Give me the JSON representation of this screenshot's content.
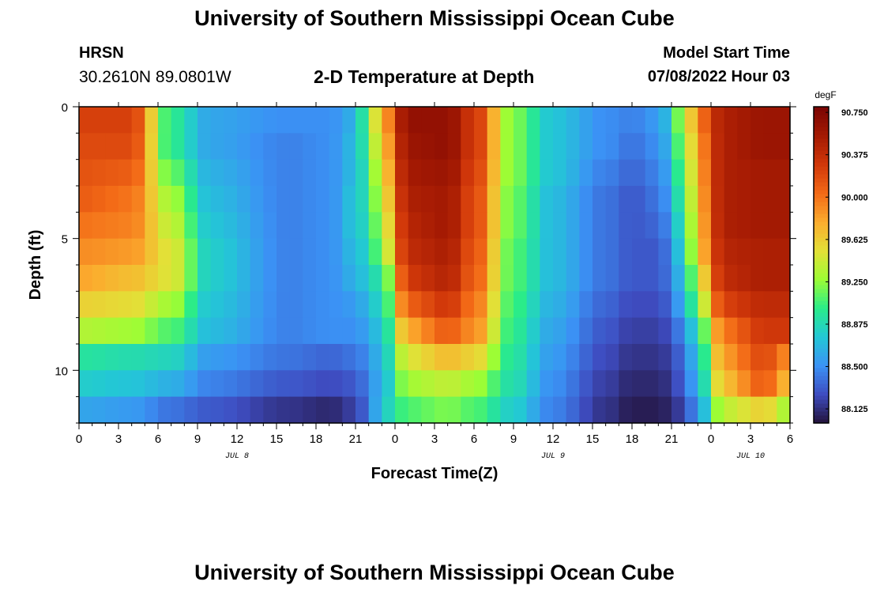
{
  "page": {
    "title": "University of Southern Mississippi Ocean Cube",
    "bottom_title": "University of Southern Mississippi Ocean Cube",
    "station": "HRSN",
    "coords": "30.2610N  89.0801W",
    "subtitle": "2-D Temperature at Depth",
    "model_start_label": "Model Start Time",
    "model_start_value": "07/08/2022 Hour 03"
  },
  "chart_data": {
    "type": "heatmap",
    "title": "2-D Temperature at Depth",
    "xlabel": "Forecast Time(Z)",
    "ylabel": "Depth (ft)",
    "x_hours": [
      0,
      54
    ],
    "y_range": [
      0,
      12
    ],
    "x_ticks": [
      {
        "h": 0,
        "label": "0"
      },
      {
        "h": 3,
        "label": "3"
      },
      {
        "h": 6,
        "label": "6"
      },
      {
        "h": 9,
        "label": "9"
      },
      {
        "h": 12,
        "label": "12"
      },
      {
        "h": 15,
        "label": "15"
      },
      {
        "h": 18,
        "label": "18"
      },
      {
        "h": 21,
        "label": "21"
      },
      {
        "h": 24,
        "label": "0"
      },
      {
        "h": 27,
        "label": "3"
      },
      {
        "h": 30,
        "label": "6"
      },
      {
        "h": 33,
        "label": "9"
      },
      {
        "h": 36,
        "label": "12"
      },
      {
        "h": 39,
        "label": "15"
      },
      {
        "h": 42,
        "label": "18"
      },
      {
        "h": 45,
        "label": "21"
      },
      {
        "h": 48,
        "label": "0"
      },
      {
        "h": 51,
        "label": "3"
      },
      {
        "h": 54,
        "label": "6"
      }
    ],
    "date_labels": [
      {
        "h": 12,
        "label": "JUL 8"
      },
      {
        "h": 36,
        "label": "JUL 9"
      },
      {
        "h": 51,
        "label": "JUL 10"
      }
    ],
    "y_ticks": [
      {
        "v": 0,
        "label": "0"
      },
      {
        "v": 5,
        "label": "5"
      },
      {
        "v": 10,
        "label": "10"
      }
    ],
    "depth_levels": [
      0.5,
      1.5,
      2.5,
      3.5,
      4.5,
      5.5,
      6.5,
      7.5,
      8.5,
      9.5,
      10.5,
      11.5
    ],
    "level_bounds": [
      0,
      1,
      2,
      3,
      4,
      5,
      6,
      7,
      8,
      9,
      10,
      11,
      12
    ],
    "time_step_hours": 1,
    "key_times": [
      0,
      4,
      7,
      10,
      16,
      19,
      21,
      22,
      23,
      25,
      28,
      30,
      33,
      36,
      40,
      42,
      44,
      46,
      47,
      49,
      52,
      54
    ],
    "values": [
      [
        90.25,
        90.25,
        89.0,
        88.6,
        88.5,
        88.5,
        88.65,
        89.2,
        89.8,
        90.65,
        90.65,
        90.3,
        89.2,
        88.75,
        88.5,
        88.45,
        88.55,
        89.3,
        90.0,
        90.5,
        90.6,
        90.6
      ],
      [
        90.2,
        90.2,
        89.0,
        88.6,
        88.45,
        88.5,
        88.7,
        89.1,
        89.7,
        90.6,
        90.65,
        90.3,
        89.2,
        88.75,
        88.5,
        88.4,
        88.5,
        89.2,
        89.9,
        90.5,
        90.6,
        90.6
      ],
      [
        90.15,
        90.1,
        89.15,
        88.65,
        88.45,
        88.5,
        88.7,
        89.0,
        89.6,
        90.55,
        90.6,
        90.25,
        89.2,
        88.75,
        88.45,
        88.35,
        88.45,
        89.1,
        89.85,
        90.5,
        90.55,
        90.55
      ],
      [
        90.1,
        90.0,
        89.3,
        88.7,
        88.45,
        88.5,
        88.75,
        88.95,
        89.5,
        90.5,
        90.55,
        90.2,
        89.15,
        88.7,
        88.4,
        88.3,
        88.4,
        89.0,
        89.8,
        90.5,
        90.55,
        90.55
      ],
      [
        90.0,
        89.95,
        89.4,
        88.75,
        88.45,
        88.5,
        88.75,
        88.9,
        89.4,
        90.45,
        90.55,
        90.2,
        89.15,
        88.7,
        88.4,
        88.3,
        88.35,
        88.9,
        89.75,
        90.5,
        90.55,
        90.55
      ],
      [
        89.9,
        89.85,
        89.5,
        88.8,
        88.45,
        88.5,
        88.7,
        88.85,
        89.3,
        90.4,
        90.5,
        90.15,
        89.1,
        88.7,
        88.4,
        88.3,
        88.3,
        88.8,
        89.7,
        90.45,
        90.5,
        90.5
      ],
      [
        89.8,
        89.7,
        89.5,
        88.8,
        88.45,
        88.5,
        88.65,
        88.8,
        89.0,
        90.3,
        90.45,
        90.1,
        89.1,
        88.7,
        88.4,
        88.3,
        88.3,
        88.7,
        89.5,
        90.4,
        90.5,
        90.5
      ],
      [
        89.6,
        89.55,
        89.3,
        88.75,
        88.45,
        88.5,
        88.55,
        88.7,
        88.9,
        90.1,
        90.3,
        90.0,
        89.05,
        88.65,
        88.35,
        88.25,
        88.25,
        88.6,
        89.3,
        90.25,
        90.4,
        90.4
      ],
      [
        89.35,
        89.3,
        89.1,
        88.7,
        88.45,
        88.5,
        88.5,
        88.6,
        88.8,
        89.8,
        90.1,
        89.9,
        89.0,
        88.6,
        88.3,
        88.2,
        88.2,
        88.45,
        89.0,
        90.0,
        90.3,
        90.3
      ],
      [
        88.95,
        88.9,
        88.85,
        88.55,
        88.4,
        88.35,
        88.4,
        88.5,
        88.75,
        89.5,
        89.7,
        89.6,
        88.95,
        88.55,
        88.25,
        88.15,
        88.15,
        88.35,
        88.85,
        89.85,
        90.2,
        89.9
      ],
      [
        88.8,
        88.75,
        88.65,
        88.45,
        88.3,
        88.25,
        88.3,
        88.45,
        88.7,
        89.3,
        89.4,
        89.3,
        88.9,
        88.5,
        88.2,
        88.1,
        88.1,
        88.3,
        88.75,
        89.7,
        90.1,
        89.7
      ],
      [
        88.6,
        88.55,
        88.4,
        88.3,
        88.15,
        88.1,
        88.2,
        88.4,
        88.8,
        89.1,
        89.2,
        89.1,
        88.8,
        88.45,
        88.15,
        88.05,
        88.05,
        88.2,
        88.6,
        89.4,
        89.6,
        89.3
      ]
    ],
    "color_scale": {
      "unit": "degF",
      "min": 88.0,
      "max": 90.8,
      "tick_values": [
        88.125,
        88.5,
        88.875,
        89.25,
        89.625,
        90.0,
        90.375,
        90.75
      ],
      "tick_labels": [
        "88.125",
        "88.500",
        "88.875",
        "89.250",
        "89.625",
        "90.000",
        "90.375",
        "90.750"
      ],
      "colors": [
        "#23123a",
        "#3e4cc0",
        "#3b92f5",
        "#23c7d6",
        "#29ec8a",
        "#9cfd35",
        "#e3e037",
        "#fbac2e",
        "#f36a17",
        "#d1380a",
        "#a41a03",
        "#7a0403"
      ]
    }
  }
}
